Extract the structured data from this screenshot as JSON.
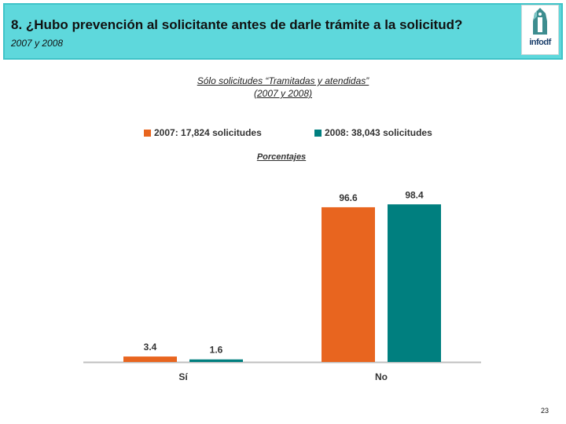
{
  "header": {
    "title": "8. ¿Hubo prevención al solicitante antes de darle trámite a la solicitud?",
    "subtitle": "2007 y 2008",
    "logo_text": "infodf"
  },
  "caption": {
    "line1": "Sólo solicitudes “Tramitadas y atendidas”",
    "line2": "(2007 y 2008)"
  },
  "unit_label": "Porcentajes",
  "page_number": "23",
  "colors": {
    "series_2007": "#e8651f",
    "series_2008": "#007f7f",
    "header_bg": "#5ed8dc"
  },
  "chart_data": {
    "type": "bar",
    "categories": [
      "Sí",
      "No"
    ],
    "series": [
      {
        "name": "2007: 17,824 solicitudes",
        "values": [
          3.4,
          96.6
        ]
      },
      {
        "name": "2008: 38,043 solicitudes",
        "values": [
          1.6,
          98.4
        ]
      }
    ],
    "value_labels": [
      [
        "3.4",
        "96.6"
      ],
      [
        "1.6",
        "98.4"
      ]
    ],
    "ylim": [
      0,
      100
    ],
    "grid": false,
    "legend_position": "top"
  }
}
